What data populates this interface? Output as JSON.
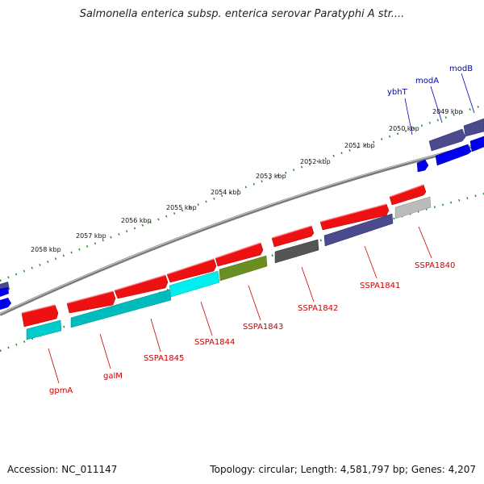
{
  "title": "Salmonella enterica subsp. enterica serovar Paratyphi A str....",
  "accession_text": "Accession: NC_011147",
  "topology_text": "Topology: circular; Length: 4,581,797 bp; Genes: 4,207",
  "kbp_ticks": [
    "2049 kbp",
    "2050 kbp",
    "2051 kbp",
    "2052 kbp",
    "2053 kbp",
    "2054 kbp",
    "2055 kbp",
    "2056 kbp",
    "2057 kbp",
    "2058 kbp"
  ],
  "genes_lower": [
    "gpmA",
    "galM",
    "SSPA1845",
    "SSPA1844",
    "SSPA1843",
    "SSPA1842",
    "SSPA1841",
    "SSPA1840"
  ],
  "genes_upper": [
    "ybhT",
    "modA",
    "modB"
  ],
  "colors": {
    "red_gene": "#ee1111",
    "cyan_gene": "#00cccc",
    "navy_gene": "#4a4a8c",
    "olive_gene": "#6b8e23",
    "gray_gene": "#555555",
    "lightgray_gene": "#bbbbbb",
    "blue_gene": "#0000ee",
    "backbone": "#888888",
    "tick_dots": "#2a8a2a",
    "label_red": "#cc0000",
    "label_blue": "#0000bb"
  }
}
